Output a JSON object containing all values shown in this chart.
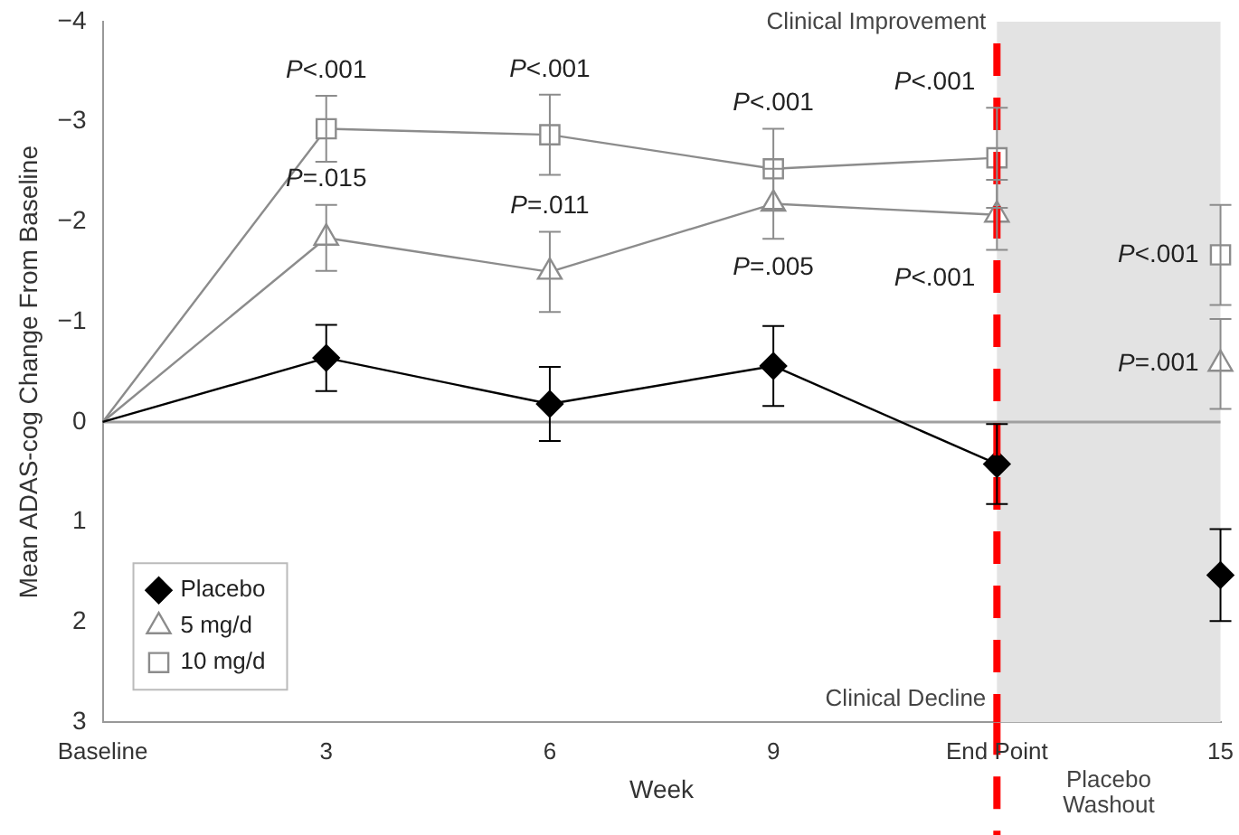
{
  "chart_data": {
    "type": "line",
    "xlabel": "Week",
    "ylabel": "Mean ADAS-cog Change From Baseline",
    "categories": [
      "Baseline",
      "3",
      "6",
      "9",
      "End Point",
      "15"
    ],
    "ylim": [
      3,
      -4
    ],
    "yticks": [
      -4,
      -3,
      -2,
      -1,
      0,
      1,
      2,
      3
    ],
    "grid": false,
    "legend": "bottom left",
    "series": [
      {
        "name": "Placebo",
        "color": "#000000",
        "marker": "diamond",
        "values": [
          0,
          -0.64,
          -0.18,
          -0.56,
          0.42,
          null
        ],
        "errors": [
          null,
          0.33,
          0.37,
          0.4,
          0.4,
          null
        ]
      },
      {
        "name": "5 mg/d",
        "color": "#8c8c8c",
        "marker": "triangle",
        "values": [
          0,
          -1.84,
          -1.5,
          -2.18,
          -2.07,
          null
        ],
        "errors": [
          null,
          0.33,
          0.4,
          0.35,
          0.35,
          null
        ]
      },
      {
        "name": "10 mg/d",
        "color": "#8c8c8c",
        "marker": "square",
        "values": [
          0,
          -2.93,
          -2.87,
          -2.53,
          -2.64,
          null
        ],
        "errors": [
          null,
          0.33,
          0.4,
          0.4,
          0.5,
          null
        ]
      },
      {
        "type": "scatter",
        "color": "#000000",
        "marker": "diamond",
        "x": [
          "15"
        ],
        "values": [
          1.53
        ],
        "errors": [
          0.46
        ]
      },
      {
        "type": "scatter",
        "color": "#8c8c8c",
        "marker": "triangle",
        "x": [
          "15"
        ],
        "values": [
          -0.58
        ],
        "errors": [
          0.45
        ]
      },
      {
        "type": "scatter",
        "color": "#8c8c8c",
        "marker": "square",
        "x": [
          "15"
        ],
        "values": [
          -1.67
        ],
        "errors": [
          0.5
        ]
      }
    ],
    "ref_lines": [
      {
        "axis": "y",
        "value": 0,
        "color": "#a0a0a0"
      },
      {
        "axis": "x",
        "value": "End Point",
        "color": "#ff0000",
        "line_style": "dashed"
      }
    ],
    "bands": [
      {
        "axis": "x",
        "from": "End Point",
        "to": "15",
        "label": "Placebo Washout",
        "color": "#e3e3e3"
      }
    ],
    "annotations": [
      "Clinical Improvement",
      "Clinical Decline",
      {
        "text": "P<.001",
        "x": "3",
        "y": -2.93
      },
      {
        "text": "P=.015",
        "x": "3",
        "y": -1.84
      },
      {
        "text": "P<.001",
        "x": "6",
        "y": -2.87
      },
      {
        "text": "P=.011",
        "x": "6",
        "y": -1.5
      },
      {
        "text": "P<.001",
        "x": "9",
        "y": -2.53
      },
      {
        "text": "P=.005",
        "x": "9",
        "y": -2.18
      },
      {
        "text": "P<.001",
        "x": "End Point",
        "y": -2.64
      },
      {
        "text": "P<.001",
        "x": "End Point",
        "y": -2.07
      },
      {
        "text": "P<.001",
        "x": "15",
        "y": -1.67
      },
      {
        "text": "P=.001",
        "x": "15",
        "y": -0.58
      }
    ]
  }
}
